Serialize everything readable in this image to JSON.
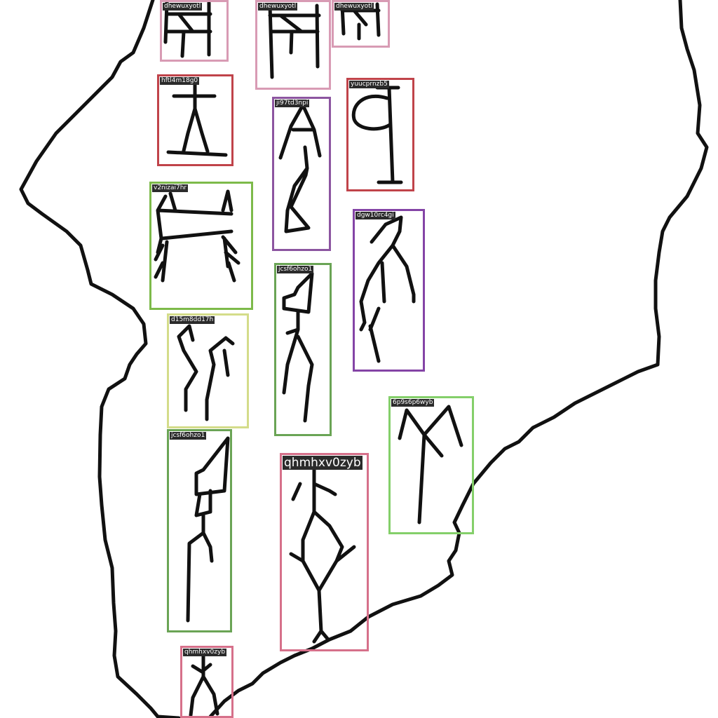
{
  "colors": {
    "ink": "#111111",
    "background": "#ffffff",
    "label_background": "#2b2b2b",
    "label_text": "#ffffff"
  },
  "annotations": [
    {
      "label": "dhewuxyotl",
      "color": "#d89bb4"
    },
    {
      "label": "dhewuxyotl",
      "color": "#d89bb4"
    },
    {
      "label": "dhewuxyotl",
      "color": "#d89bb4"
    },
    {
      "label": "hftl4m18g0",
      "color": "#c0434a"
    },
    {
      "label": "yuucprnzb5",
      "color": "#c0434a"
    },
    {
      "label": "ji97td3npi",
      "color": "#8c55a0"
    },
    {
      "label": "v2nizai7hr",
      "color": "#7dba4a"
    },
    {
      "label": "dgw10rc4gi",
      "color": "#8444a6"
    },
    {
      "label": "jcsf6ohzo1",
      "color": "#6aa455"
    },
    {
      "label": "d15m8dd17h",
      "color": "#d4dc8a"
    },
    {
      "label": "6p9s6p6wyb",
      "color": "#84cf6a"
    },
    {
      "label": "jcsf6ohzo1",
      "color": "#6aa455"
    },
    {
      "label": "qhmhxv0zyb",
      "color": "#d6708a"
    },
    {
      "label": "qhmhxv0zyb",
      "color": "#d6708a"
    }
  ]
}
